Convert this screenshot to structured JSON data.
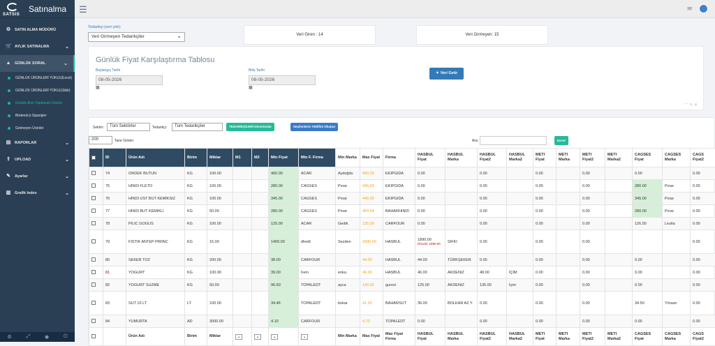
{
  "brand": {
    "logo_text": "SATSIS",
    "title": "Satınalma"
  },
  "sidebar": {
    "items": [
      {
        "label": "SATIN ALMA MÜDÜRÜ",
        "icon": "gear-icon"
      },
      {
        "label": "AYLIK SATINALMA",
        "icon": "cart-icon"
      },
      {
        "label": "GÜNLÜK SORAL",
        "icon": "chart-icon"
      }
    ],
    "sub": [
      "GÜNLÜK ÜRÜNLERİ YÜKLE(Excel)",
      "GÜNLÜK ÜRÜNLERİ YÜKLE(Sbik)",
      "Günlük Alım Yapılacak Ürünler",
      "Birdenöcü Siparişler",
      "Gelmeyen Ürünler"
    ],
    "items2": [
      {
        "label": "RAPORLAR",
        "icon": "report-icon"
      },
      {
        "label": "UPLOAD",
        "icon": "upload-icon"
      },
      {
        "label": "Ayarlar",
        "icon": "settings-icon"
      },
      {
        "label": "Grafik Index",
        "icon": "bar-chart-icon"
      }
    ]
  },
  "supplier": {
    "label": "Tedarikçi (veri yok):",
    "value": "Veri Girmeyen Tedarikçiler"
  },
  "stats": {
    "entered": "Veri Giren : 14",
    "not_entered": "Veri Girmeyen: 15"
  },
  "panel": {
    "title": "Günlük Fiyat Karşılaştırma Tablosu",
    "start_label": "Başlangıç Tarihi",
    "start_value": "08-05-2026",
    "end_label": "Bitiş Tarihi",
    "end_value": "08-05-2026",
    "fetch_button": "Veri Getir"
  },
  "filters": {
    "sector_label": "Sektör:",
    "sector_value": "Tüm Sektörler",
    "supplier_label": "Tedarikçi:",
    "supplier_value": "Tüm Tedarikçiler",
    "btn_excel": "TEDARİKÇİLERİ OtoArtınılar",
    "btn_teklif": "Seçilenlerin Teklifini Oluştur",
    "page_size": "200",
    "page_size_suffix": "Tane Göster",
    "search_label": "Ara:",
    "excel_button": "Excel"
  },
  "table": {
    "headers": [
      "ID",
      "Ürün Adı",
      "Birim",
      "Miktar",
      "M1",
      "M2",
      "Min Fiyat",
      "Min F. Firma",
      "Min Marka",
      "Max Fiyat",
      "Firma",
      "HASBUL Fiyat",
      "HASBUL Marka",
      "HASBUL Fiyat2",
      "HASBUL Marka2",
      "METI Fiyat",
      "METI Marka",
      "METI Fiyat2",
      "METI Marka2",
      "CAGSES Fiyat",
      "CAGSES Marka",
      "CAGS Fiyat2"
    ],
    "rows": [
      {
        "id": "74",
        "name": "ORDEK BUTUN",
        "unit": "KG",
        "qty": "100.00",
        "m1": "",
        "m2": "",
        "min": "460.00",
        "minfirm": "ACAR",
        "minmarka": "Aydoğdu",
        "max": "460.00",
        "firm": "EKIPGIDA",
        "hf": "0.00",
        "hm": "",
        "hf2": "0.00",
        "hm2": "",
        "mf": "0.00",
        "mm": "",
        "mf2": "0.00",
        "mm2": "",
        "cf": "0.00",
        "cm": "",
        "cf2": "0.00",
        "cgreen": false
      },
      {
        "id": "75",
        "name": "HINDI FLETO",
        "unit": "KG",
        "qty": "100.00",
        "m1": "",
        "m2": "",
        "min": "280.00",
        "minfirm": "CAGSES",
        "minmarka": "Pınar",
        "max": "345.00",
        "firm": "EKIPGIDA",
        "hf": "0.00",
        "hm": "",
        "hf2": "0.00",
        "hm2": "",
        "mf": "0.00",
        "mm": "",
        "mf2": "0.00",
        "mm2": "",
        "cf": "280.00",
        "cm": "Pınar",
        "cf2": "0.00",
        "cgreen": true
      },
      {
        "id": "76",
        "name": "HINDI UST BUT KEMIKSIZ",
        "unit": "KG",
        "qty": "100.00",
        "m1": "",
        "m2": "",
        "min": "345.00",
        "minfirm": "CAGSES",
        "minmarka": "Pınar",
        "max": "440.00",
        "firm": "EKIPGIDA",
        "hf": "0.00",
        "hm": "",
        "hf2": "0.00",
        "hm2": "",
        "mf": "0.00",
        "mm": "",
        "mf2": "0.00",
        "mm2": "",
        "cf": "345.00",
        "cm": "Pınar",
        "cf2": "0.00",
        "cgreen": true
      },
      {
        "id": "77",
        "name": "HINDI BUT KEMIKLI",
        "unit": "KG",
        "qty": "50.00",
        "m1": "",
        "m2": "",
        "min": "280.00",
        "minfirm": "CAGSES",
        "minmarka": "Pınar",
        "max": "454.54",
        "firm": "BAHARHINDI",
        "hf": "0.00",
        "hm": "",
        "hf2": "0.00",
        "hm2": "",
        "mf": "0.00",
        "mm": "",
        "mf2": "0.00",
        "mm2": "",
        "cf": "280.00",
        "cm": "Pınar",
        "cf2": "0.00",
        "cgreen": true
      },
      {
        "id": "78",
        "name": "PILIC GOGUS",
        "unit": "KG",
        "qty": "100.00",
        "m1": "",
        "m2": "",
        "min": "125.00",
        "minfirm": "ACAR",
        "minmarka": "Gedik",
        "max": "135.00",
        "firm": "CARFOUR",
        "hf": "0.00",
        "hm": "",
        "hf2": "0.00",
        "hm2": "",
        "mf": "0.00",
        "mm": "",
        "mf2": "0.00",
        "mm2": "",
        "cf": "126.50",
        "cm": "Lezita",
        "cf2": "0.00",
        "cgreen": false
      },
      {
        "id": "79",
        "name": "FISTIK ANTEP PIRINC",
        "unit": "KG",
        "qty": "15.00",
        "m1": "",
        "m2": "",
        "min": "1400.00",
        "minfirm": "dhedt",
        "minmarka": "Sezden",
        "max": "1890.00",
        "firm": "HASBUL",
        "hf": "1890.00",
        "hfnote": "Önceki: 1890.00",
        "hm": "SIFKI",
        "hf2": "0.00",
        "hm2": "",
        "mf": "0.00",
        "mm": "",
        "mf2": "0.00",
        "mm2": "",
        "cf": "",
        "cm": "",
        "cf2": "0.00",
        "cgreen": false,
        "tall": true
      },
      {
        "id": "80",
        "name": "SEKER TOZ",
        "unit": "KG",
        "qty": "200.00",
        "m1": "",
        "m2": "",
        "min": "38.00",
        "minfirm": "CARFOUR",
        "minmarka": "",
        "max": "44.00",
        "firm": "HASBUL",
        "hf": "44.00",
        "hm": "TÜRKŞEKER",
        "hf2": "0.00",
        "hm2": "",
        "mf": "0.00",
        "mm": "",
        "mf2": "0.00",
        "mm2": "",
        "cf": "0.00",
        "cm": "",
        "cf2": "0.00",
        "cgreen": false
      },
      {
        "id": "81",
        "name": "YOGURT",
        "unit": "KG",
        "qty": "100.00",
        "m1": "",
        "m2": "",
        "min": "39.00",
        "minfirm": "İrem",
        "minmarka": "enka",
        "max": "46.00",
        "firm": "HASBUL",
        "hf": "46.00",
        "hm": "AKDENIZ",
        "hf2": "48.00",
        "hm2": "İÇİM",
        "mf": "0.00",
        "mm": "",
        "mf2": "0.00",
        "mm2": "",
        "cf": "0.00",
        "cm": "",
        "cf2": "0.00",
        "cgreen": false,
        "idred": true
      },
      {
        "id": "82",
        "name": "YOGURT SUZME",
        "unit": "KG",
        "qty": "50.00",
        "m1": "",
        "m2": "",
        "min": "96.50",
        "minfirm": "TOPALEDT",
        "minmarka": "ayca",
        "max": "140.00",
        "firm": "guresi",
        "hf": "125.00",
        "hm": "AKDENIZ",
        "hf2": "135.00",
        "hm2": "İçim",
        "mf": "0.00",
        "mm": "",
        "mf2": "0.00",
        "mm2": "",
        "cf": "0.00",
        "cm": "",
        "cf2": "0.00",
        "cgreen": false
      },
      {
        "id": "83",
        "name": "SUT 10 LT",
        "unit": "LT",
        "qty": "100.00",
        "m1": "",
        "m2": "",
        "min": "34.46",
        "minfirm": "TOPALEDT",
        "minmarka": "bokar",
        "max": "41.50",
        "firm": "BAHARSUT",
        "hf": "36.00",
        "hm": "BOLKAR AZ Y.",
        "hf2": "0.00",
        "hm2": "",
        "mf": "0.00",
        "mm": "",
        "mf2": "0.00",
        "mm2": "",
        "cf": "34.50",
        "cm": "Yörsan",
        "cf2": "0.00",
        "cgreen": false,
        "tall": true
      },
      {
        "id": "84",
        "name": "YUMURTA",
        "unit": "AD",
        "qty": "3000.00",
        "m1": "",
        "m2": "",
        "min": "4.10",
        "minfirm": "CARFOUR",
        "minmarka": "",
        "max": "4.70",
        "firm": "TOPALEDT",
        "hf": "0.00",
        "hm": "",
        "hf2": "0.00",
        "hm2": "",
        "mf": "0.00",
        "mm": "",
        "mf2": "0.00",
        "mm2": "",
        "cf": "0.00",
        "cm": "",
        "cf2": "0.00",
        "cgreen": false
      }
    ],
    "footer": [
      "",
      "Ürün Adı",
      "Birim",
      "Miktar",
      "",
      "",
      "",
      "",
      "Min Marka",
      "Max Fiyat",
      "Max Fiyat Firma",
      "HASBUL Fiyat",
      "HASBUL Marka",
      "HASBUL Fiyat2",
      "HASBUL Marka2",
      "METI Fiyat",
      "METI Marka",
      "METI Fiyat2",
      "METI Marka2",
      "CAGSES Fiyat",
      "CAGSES Marka",
      "CAGS Fiyat2"
    ]
  },
  "colors": {
    "sidebar": "#2a3f54",
    "accent": "#1abb9c",
    "header": "#2f4b64",
    "min_highlight": "#d5efd8",
    "max_text": "#f0a020"
  }
}
